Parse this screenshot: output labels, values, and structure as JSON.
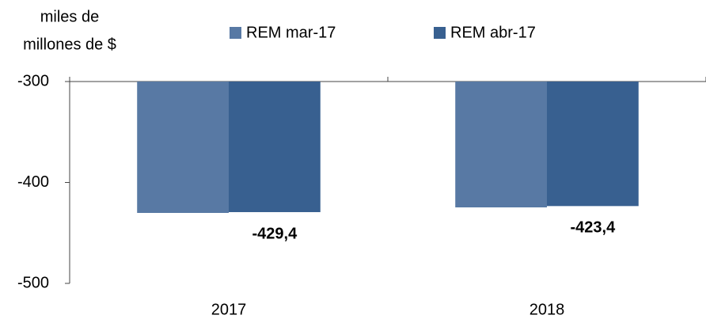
{
  "chart_data": {
    "type": "bar",
    "ylabel": [
      "miles de",
      "millones de $"
    ],
    "categories": [
      "2017",
      "2018"
    ],
    "series": [
      {
        "name": "REM mar-17",
        "color": "#5879a4",
        "values": [
          -430.2,
          -424.7
        ]
      },
      {
        "name": "REM abr-17",
        "color": "#386090",
        "values": [
          -429.4,
          -423.4
        ],
        "value_labels": [
          "-429,4",
          "-423,4"
        ]
      }
    ],
    "ylim": [
      -500,
      -300
    ],
    "yticks": [
      -500,
      -400,
      -300
    ]
  }
}
